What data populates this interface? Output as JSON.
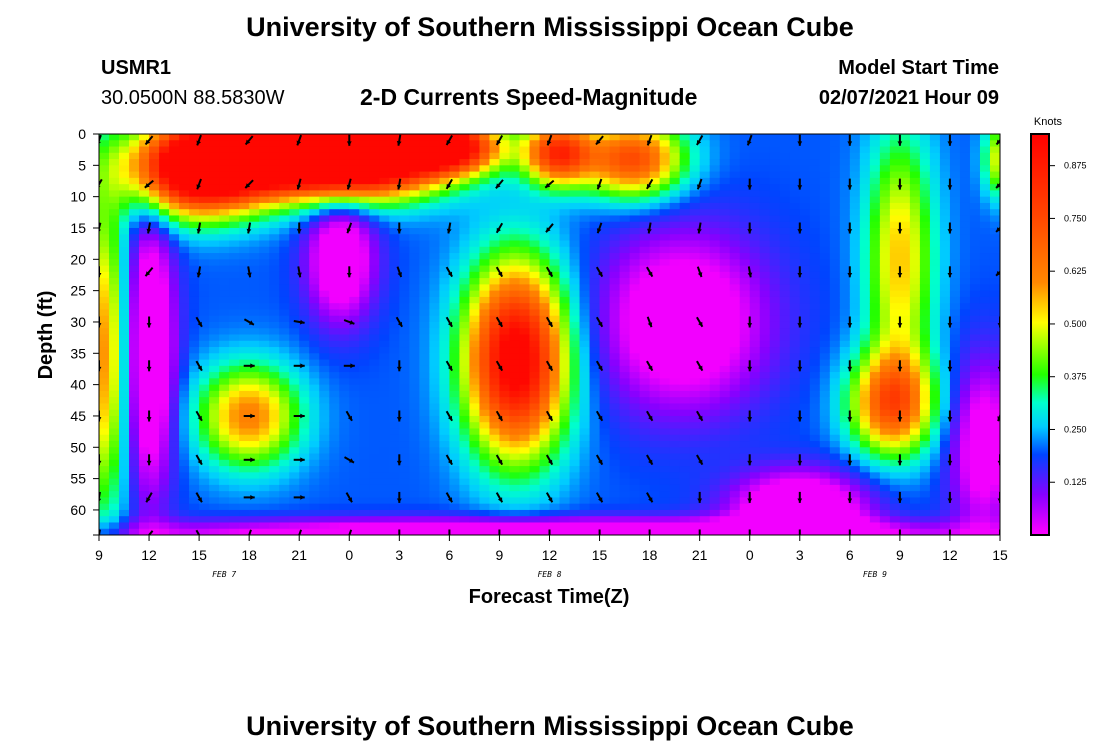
{
  "header": {
    "title": "University of Southern Mississippi Ocean Cube",
    "station": "USMR1",
    "coords": "30.0500N 88.5830W",
    "plot_title": "2-D Currents Speed-Magnitude",
    "model_label": "Model Start Time",
    "model_time": "02/07/2021 Hour 09"
  },
  "footer": {
    "title": "University of Southern Mississippi Ocean Cube"
  },
  "chart_data": {
    "type": "heatmap",
    "title": "2-D Currents Speed-Magnitude",
    "xlabel": "Forecast Time(Z)",
    "ylabel": "Depth (ft)",
    "x_ticks": [
      "9",
      "12",
      "15",
      "18",
      "21",
      "0",
      "3",
      "6",
      "9",
      "12",
      "15",
      "18",
      "21",
      "0",
      "3",
      "6",
      "9",
      "12",
      "15"
    ],
    "x_hours": [
      0,
      3,
      6,
      9,
      12,
      15,
      18,
      21,
      24,
      27,
      30,
      33,
      36,
      39,
      42,
      45,
      48,
      51,
      54
    ],
    "date_labels": [
      {
        "text": "FEB 7",
        "hour": 7.5
      },
      {
        "text": "FEB 8",
        "hour": 27
      },
      {
        "text": "FEB 9",
        "hour": 46.5
      }
    ],
    "y_ticks": [
      "0",
      "5",
      "10",
      "15",
      "20",
      "25",
      "30",
      "35",
      "40",
      "45",
      "50",
      "55",
      "60"
    ],
    "y_values": [
      0,
      5,
      10,
      15,
      20,
      25,
      30,
      35,
      40,
      45,
      50,
      55,
      60
    ],
    "ylim": [
      0,
      64
    ],
    "xlim": [
      0,
      54
    ],
    "colorbar": {
      "label": "Knots",
      "ticks": [
        "0.875",
        "0.750",
        "0.625",
        "0.500",
        "0.375",
        "0.250",
        "0.125"
      ],
      "tick_values": [
        0.875,
        0.75,
        0.625,
        0.5,
        0.375,
        0.25,
        0.125
      ],
      "range": [
        0,
        0.95
      ]
    },
    "speed_blobs": [
      {
        "h": 11.0,
        "d": 3.0,
        "v": 0.9,
        "rh": 6.0,
        "rd": 6.0
      },
      {
        "h": 6.0,
        "d": 6.0,
        "v": 0.8,
        "rh": 4.0,
        "rd": 7.0
      },
      {
        "h": 16.0,
        "d": 4.0,
        "v": 0.75,
        "rh": 5.0,
        "rd": 6.0
      },
      {
        "h": 21.0,
        "d": 2.0,
        "v": 0.7,
        "rh": 3.0,
        "rd": 4.0
      },
      {
        "h": 27.5,
        "d": 3.0,
        "v": 0.6,
        "rh": 2.0,
        "rd": 5.0
      },
      {
        "h": 32.0,
        "d": 4.0,
        "v": 0.55,
        "rh": 3.0,
        "rd": 6.0
      },
      {
        "h": 25.0,
        "d": 36.0,
        "v": 0.8,
        "rh": 3.0,
        "rd": 15.0
      },
      {
        "h": 9.0,
        "d": 45.0,
        "v": 0.42,
        "rh": 3.0,
        "rd": 8.0
      },
      {
        "h": 47.5,
        "d": 43.0,
        "v": 0.5,
        "rh": 2.5,
        "rd": 8.0
      },
      {
        "h": 48.0,
        "d": 20.0,
        "v": 0.35,
        "rh": 2.0,
        "rd": 20.0
      },
      {
        "h": 0.3,
        "d": 35.0,
        "v": 0.4,
        "rh": 1.5,
        "rd": 25.0
      },
      {
        "h": 54.0,
        "d": 4.0,
        "v": 0.3,
        "rh": 1.0,
        "rd": 6.0
      }
    ],
    "slow_blobs": [
      {
        "h": 3.0,
        "d": 35.0,
        "v": -0.35,
        "rh": 1.5,
        "rd": 22.0
      },
      {
        "h": 14.5,
        "d": 20.0,
        "v": -0.3,
        "rh": 2.0,
        "rd": 10.0
      },
      {
        "h": 35.0,
        "d": 30.0,
        "v": -0.3,
        "rh": 5.0,
        "rd": 14.0
      },
      {
        "h": 42.0,
        "d": 60.0,
        "v": -0.35,
        "rh": 4.0,
        "rd": 6.0
      },
      {
        "h": 27.0,
        "d": 64.0,
        "v": -0.35,
        "rh": 24.0,
        "rd": 2.5
      },
      {
        "h": 53.0,
        "d": 50.0,
        "v": -0.25,
        "rh": 2.0,
        "rd": 14.0
      }
    ],
    "vector_rows_depth": [
      1,
      8,
      15,
      22,
      30,
      37,
      45,
      52,
      58,
      64
    ],
    "vector_cols_hour": [
      0,
      3,
      6,
      9,
      12,
      15,
      18,
      21,
      24,
      27,
      30,
      33,
      36,
      39,
      42,
      45,
      48,
      51,
      54
    ],
    "vector_dirs_deg": [
      [
        200,
        220,
        200,
        220,
        200,
        180,
        190,
        210,
        210,
        200,
        220,
        200,
        210,
        200,
        180,
        180,
        180,
        180,
        220
      ],
      [
        210,
        230,
        200,
        225,
        195,
        195,
        190,
        210,
        220,
        230,
        200,
        210,
        200,
        180,
        180,
        180,
        180,
        180,
        225
      ],
      [
        195,
        190,
        190,
        190,
        180,
        200,
        180,
        190,
        210,
        220,
        200,
        190,
        190,
        180,
        180,
        180,
        180,
        180,
        225
      ],
      [
        180,
        220,
        190,
        170,
        170,
        180,
        160,
        150,
        150,
        150,
        150,
        150,
        160,
        170,
        180,
        180,
        180,
        180,
        225
      ],
      [
        180,
        180,
        150,
        120,
        100,
        110,
        150,
        150,
        150,
        150,
        150,
        160,
        150,
        180,
        180,
        180,
        180,
        180,
        180
      ],
      [
        180,
        180,
        150,
        90,
        90,
        90,
        180,
        150,
        150,
        150,
        150,
        150,
        150,
        180,
        180,
        180,
        180,
        180,
        180
      ],
      [
        180,
        180,
        150,
        90,
        90,
        150,
        180,
        150,
        150,
        150,
        150,
        150,
        150,
        180,
        180,
        180,
        180,
        180,
        200
      ],
      [
        180,
        180,
        150,
        90,
        90,
        120,
        180,
        150,
        150,
        150,
        150,
        150,
        150,
        180,
        180,
        180,
        180,
        180,
        180
      ],
      [
        190,
        210,
        150,
        90,
        90,
        150,
        180,
        150,
        150,
        150,
        150,
        150,
        180,
        180,
        180,
        180,
        180,
        180,
        180
      ],
      [
        190,
        220,
        150,
        200,
        200,
        200,
        180,
        180,
        180,
        180,
        180,
        180,
        180,
        180,
        180,
        180,
        180,
        180,
        180
      ]
    ]
  }
}
